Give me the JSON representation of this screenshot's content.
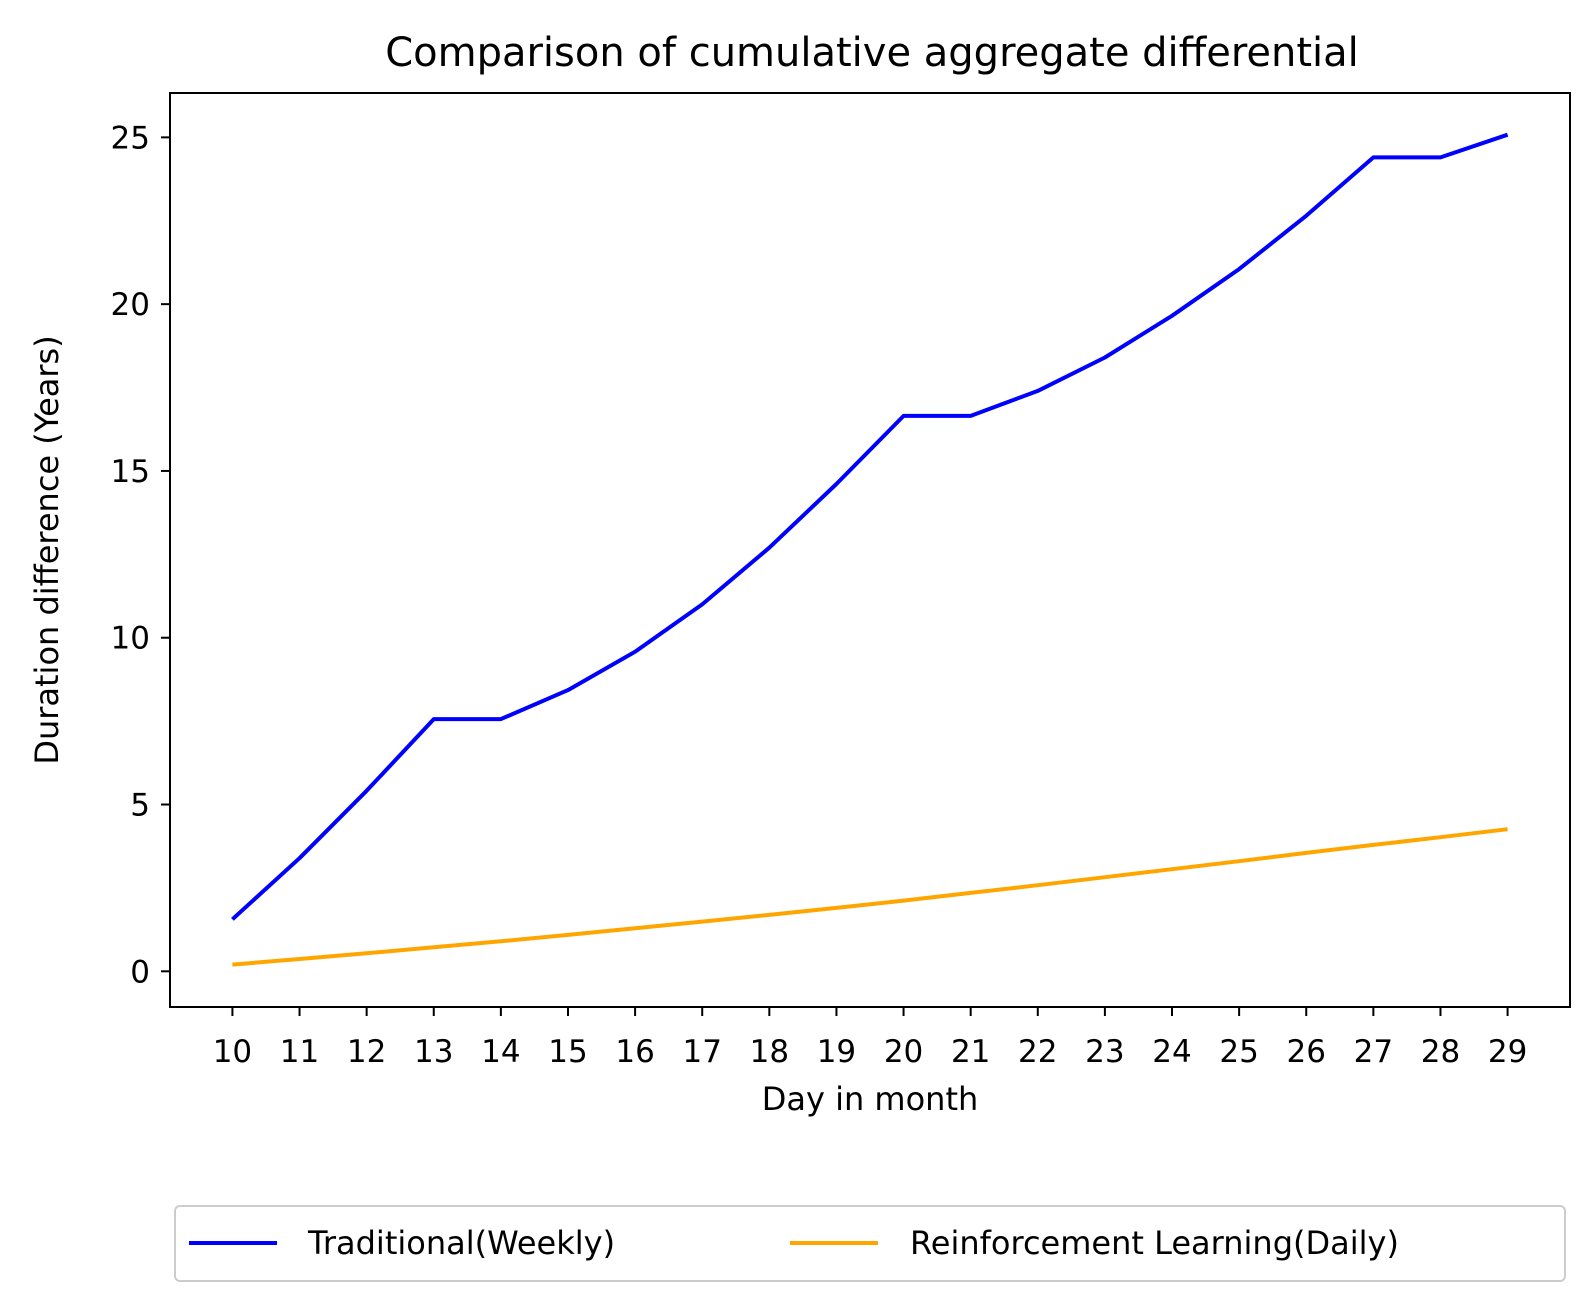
{
  "chart_data": {
    "type": "line",
    "title": "Comparison of cumulative aggregate differential",
    "xlabel": "Day in month",
    "ylabel": "Duration difference (Years)",
    "x": [
      10,
      11,
      12,
      13,
      14,
      15,
      16,
      17,
      18,
      19,
      20,
      21,
      22,
      23,
      24,
      25,
      26,
      27,
      28,
      29
    ],
    "xlim": [
      9.07,
      29.93
    ],
    "ylim": [
      -1.07,
      26.33
    ],
    "xticks": [
      "10",
      "11",
      "12",
      "13",
      "14",
      "15",
      "16",
      "17",
      "18",
      "19",
      "20",
      "21",
      "22",
      "23",
      "24",
      "25",
      "26",
      "27",
      "28",
      "29"
    ],
    "yticks": [
      0,
      5,
      10,
      15,
      20,
      25
    ],
    "ytick_labels": [
      "0",
      "5",
      "10",
      "15",
      "20",
      "25"
    ],
    "grid": false,
    "legend_position": "bottom-center",
    "series": [
      {
        "name": "Traditional(Weekly)",
        "color": "#0000ff",
        "values": [
          1.56,
          3.39,
          5.41,
          7.56,
          7.56,
          8.43,
          9.58,
          11.0,
          12.7,
          14.61,
          16.65,
          16.65,
          17.4,
          18.4,
          19.65,
          21.05,
          22.65,
          24.4,
          24.4,
          25.08
        ]
      },
      {
        "name": "Reinforcement Learning(Daily)",
        "color": "#ffa500",
        "values": [
          0.2,
          0.37,
          0.54,
          0.72,
          0.9,
          1.09,
          1.29,
          1.49,
          1.69,
          1.9,
          2.12,
          2.35,
          2.58,
          2.82,
          3.06,
          3.3,
          3.55,
          3.79,
          4.02,
          4.26
        ]
      }
    ]
  }
}
